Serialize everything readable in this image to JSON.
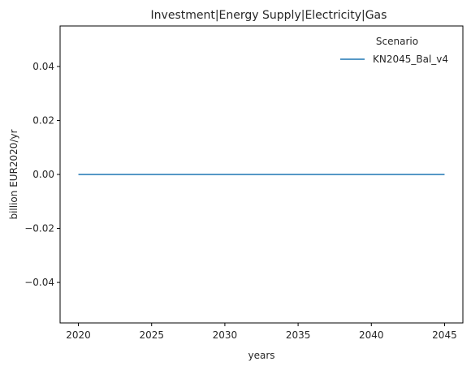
{
  "chart_data": {
    "type": "line",
    "title": "Investment|Energy Supply|Electricity|Gas",
    "xlabel": "years",
    "ylabel": "billion EUR2020/yr",
    "xlim": [
      2018.75,
      2046.25
    ],
    "ylim": [
      -0.055,
      0.055
    ],
    "x_ticks": [
      2020,
      2025,
      2030,
      2035,
      2040,
      2045
    ],
    "y_ticks": [
      -0.04,
      -0.02,
      0.0,
      0.02,
      0.04
    ],
    "y_tick_labels": [
      "−0.04",
      "−0.02",
      "0.00",
      "0.02",
      "0.04"
    ],
    "grid": false,
    "legend": {
      "title": "Scenario",
      "placement": "top-right"
    },
    "series": [
      {
        "name": "KN2045_Bal_v4",
        "color": "#1f77b4",
        "x": [
          2020,
          2025,
          2030,
          2035,
          2040,
          2045
        ],
        "y": [
          0,
          0,
          0,
          0,
          0,
          0
        ]
      }
    ]
  }
}
